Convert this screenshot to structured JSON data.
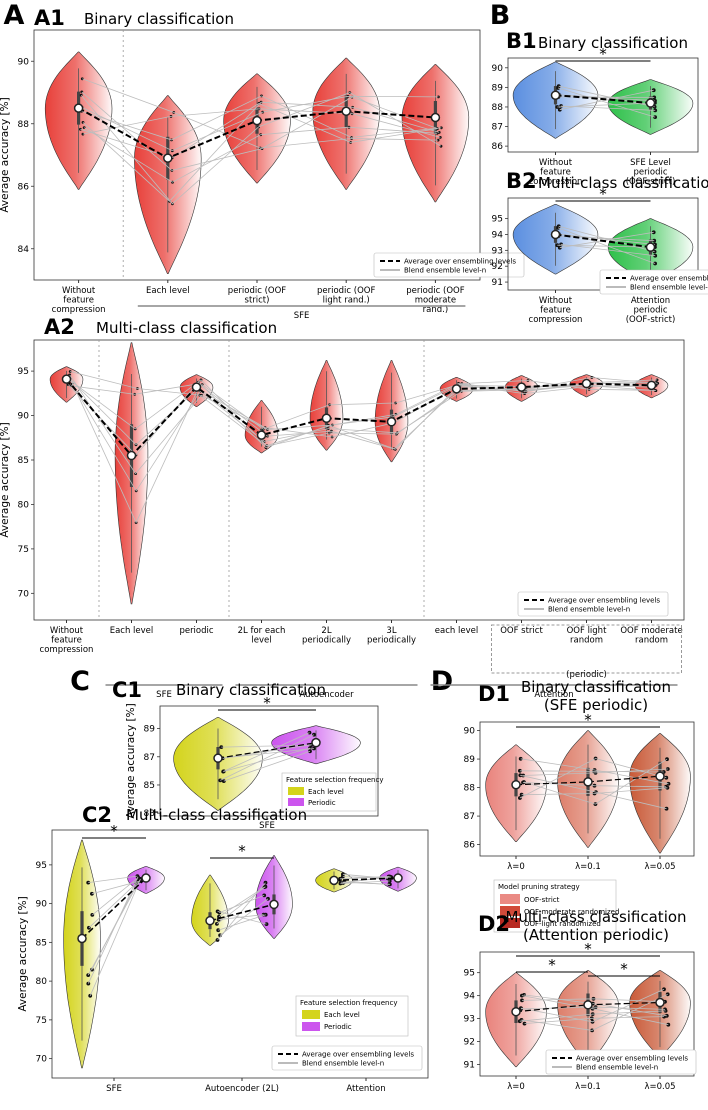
{
  "panels": {
    "A": {
      "letter": "A"
    },
    "B": {
      "letter": "B"
    },
    "C": {
      "letter": "C"
    },
    "D": {
      "letter": "D"
    }
  },
  "chart_data": [
    {
      "id": "A1",
      "type": "violin",
      "label": "A1",
      "title": "Binary classification",
      "ylabel": "Average accuracy [%]",
      "ylim": [
        83,
        91
      ],
      "yticks": [
        84,
        86,
        88,
        90
      ],
      "categories": [
        "Without feature compression",
        "Each level",
        "periodic (OOF strict)",
        "periodic (OOF light rand.)",
        "periodic (OOF moderate rand.)"
      ],
      "means": [
        88.5,
        86.9,
        88.1,
        88.4,
        88.2
      ],
      "violin_ranges": [
        [
          85.9,
          90.3
        ],
        [
          83.2,
          88.9
        ],
        [
          86.1,
          89.6
        ],
        [
          85.9,
          90.1
        ],
        [
          85.5,
          89.9
        ]
      ],
      "group_labels": [
        {
          "text": "SFE",
          "from": 1,
          "to": 4
        }
      ],
      "separators": [
        0.5
      ],
      "legend": {
        "entries": [
          "Average over ensembling levels",
          "Blend ensemble level-n"
        ],
        "position": "lower-right"
      }
    },
    {
      "id": "B1",
      "type": "violin",
      "label": "B1",
      "title": "Binary classification",
      "ylim": [
        85.7,
        90.5
      ],
      "yticks": [
        86,
        87,
        88,
        89,
        90
      ],
      "categories": [
        "Without feature compression",
        "SFE Level periodic (OOF-strict)"
      ],
      "means": [
        88.6,
        88.2
      ],
      "violin_ranges": [
        [
          86.4,
          90.3
        ],
        [
          86.6,
          89.4
        ]
      ],
      "significance": [
        {
          "from": 0,
          "to": 1,
          "label": "*"
        }
      ]
    },
    {
      "id": "B2",
      "type": "violin",
      "label": "B2",
      "title": "Multi-class classification",
      "ylim": [
        90.5,
        96.3
      ],
      "yticks": [
        91,
        92,
        93,
        94,
        95
      ],
      "categories": [
        "Without feature compression",
        "Attention periodic (OOF-strict)"
      ],
      "means": [
        94.0,
        93.2
      ],
      "violin_ranges": [
        [
          91.5,
          95.9
        ],
        [
          91.0,
          95.0
        ]
      ],
      "significance": [
        {
          "from": 0,
          "to": 1,
          "label": "*"
        }
      ],
      "legend": {
        "entries": [
          "Average over ensembling levels",
          "Blend ensemble level-n"
        ],
        "position": "lower-right"
      }
    },
    {
      "id": "A2",
      "type": "violin",
      "label": "A2",
      "title": "Multi-class classification",
      "ylabel": "Average accuracy [%]",
      "ylim": [
        67,
        98.5
      ],
      "yticks": [
        70,
        75,
        80,
        85,
        90,
        95
      ],
      "categories": [
        "Without feature compression",
        "Each level",
        "periodic",
        "2L for each level",
        "2L periodically",
        "3L periodically",
        "each level",
        "OOF strict",
        "OOF light random",
        "OOF moderate random"
      ],
      "means": [
        94.1,
        85.5,
        93.2,
        87.8,
        89.7,
        89.3,
        93.0,
        93.2,
        93.6,
        93.4
      ],
      "violin_ranges": [
        [
          91.5,
          95.5
        ],
        [
          68.8,
          98.2
        ],
        [
          91.0,
          94.6
        ],
        [
          85.8,
          91.7
        ],
        [
          86.1,
          96.2
        ],
        [
          84.8,
          96.2
        ],
        [
          91.6,
          94.3
        ],
        [
          91.6,
          94.5
        ],
        [
          92.1,
          94.6
        ],
        [
          92.0,
          94.6
        ]
      ],
      "group_labels": [
        {
          "text": "SFE",
          "from": 1,
          "to": 2
        },
        {
          "text": "Autoencoder",
          "from": 3,
          "to": 5
        },
        {
          "text": "Attention",
          "from": 6,
          "to": 9
        }
      ],
      "bracket_label": {
        "text": "(periodic)",
        "from": 7,
        "to": 9
      },
      "separators": [
        0.5,
        2.5,
        5.5
      ],
      "legend": {
        "entries": [
          "Average over ensembling levels",
          "Blend ensemble level-n"
        ],
        "position": "lower-right"
      }
    },
    {
      "id": "C1",
      "type": "violin",
      "label": "C1",
      "title": "Binary classification",
      "ylabel": "Average accuracy [%]",
      "ylim": [
        82.8,
        90.6
      ],
      "yticks": [
        83,
        85,
        87,
        89
      ],
      "categories": [
        "SFE"
      ],
      "means": [
        86.9,
        88.0
      ],
      "violin_ranges": [
        [
          83.2,
          89.8
        ],
        [
          86.5,
          89.2
        ]
      ],
      "series": [
        {
          "name": "Each level",
          "color": "#d4d41c"
        },
        {
          "name": "Periodic",
          "color": "#cc55ee"
        }
      ],
      "significance": [
        {
          "from": 0,
          "to": 1,
          "label": "*"
        }
      ],
      "legend": {
        "title": "Feature selection frequency",
        "entries": [
          "Each level",
          "Periodic"
        ],
        "position": "lower-right"
      }
    },
    {
      "id": "C2",
      "type": "violin",
      "label": "C2",
      "title": "Multi-class classification",
      "ylabel": "Average accuracy [%]",
      "ylim": [
        67.5,
        99.5
      ],
      "yticks": [
        70,
        75,
        80,
        85,
        90,
        95
      ],
      "categories": [
        "SFE",
        "Autoencoder (2L)",
        "Attention"
      ],
      "means": [
        [
          85.5,
          93.3
        ],
        [
          87.8,
          89.9
        ],
        [
          93.0,
          93.3
        ]
      ],
      "violin_ranges": [
        [
          [
            68.8,
            98.2
          ],
          [
            91.3,
            94.8
          ]
        ],
        [
          [
            84.6,
            93.7
          ],
          [
            85.5,
            96.2
          ]
        ],
        [
          [
            91.5,
            94.5
          ],
          [
            91.6,
            94.7
          ]
        ]
      ],
      "series": [
        {
          "name": "Each level",
          "color": "#d4d41c"
        },
        {
          "name": "Periodic",
          "color": "#cc55ee"
        }
      ],
      "significance": [
        {
          "group": 0,
          "label": "*"
        },
        {
          "group": 1,
          "label": "*"
        }
      ],
      "legend": {
        "title": "Feature selection frequency",
        "entries": [
          "Each level",
          "Periodic",
          "Average over ensembling levels",
          "Blend ensemble level-n"
        ],
        "position": "lower-right"
      }
    },
    {
      "id": "D1",
      "type": "violin",
      "label": "D1",
      "title": "Binary classification",
      "subtitle": "(SFE periodic)",
      "ylim": [
        85.6,
        90.3
      ],
      "yticks": [
        86,
        87,
        88,
        89,
        90
      ],
      "categories": [
        "λ=0",
        "λ=0.1",
        "λ=0.05"
      ],
      "means": [
        88.1,
        88.2,
        88.4
      ],
      "violin_ranges": [
        [
          86.1,
          89.5
        ],
        [
          85.9,
          90.0
        ],
        [
          85.7,
          89.9
        ]
      ],
      "significance": [
        {
          "from": 0,
          "to": 2,
          "label": "*"
        }
      ],
      "legend": {
        "title": "Model pruning strategy",
        "entries": [
          "OOF-strict",
          "OOF-moderate randomized",
          "OOF-light randomized"
        ],
        "position": "below"
      }
    },
    {
      "id": "D2",
      "type": "violin",
      "label": "D2",
      "title": "Multi-class classification",
      "subtitle": "(Attention periodic)",
      "ylim": [
        90.5,
        95.9
      ],
      "yticks": [
        91,
        92,
        93,
        94,
        95
      ],
      "categories": [
        "λ=0",
        "λ=0.1",
        "λ=0.05"
      ],
      "means": [
        93.3,
        93.6,
        93.7
      ],
      "violin_ranges": [
        [
          90.9,
          95.0
        ],
        [
          91.0,
          95.1
        ],
        [
          91.3,
          95.1
        ]
      ],
      "significance": [
        {
          "from": 0,
          "to": 1,
          "label": "*"
        },
        {
          "from": 1,
          "to": 2,
          "label": "*"
        },
        {
          "from": 0,
          "to": 2,
          "label": "*"
        }
      ],
      "legend": {
        "entries": [
          "Average over ensembling levels",
          "Blend ensemble level-n"
        ],
        "position": "lower-right"
      }
    }
  ]
}
